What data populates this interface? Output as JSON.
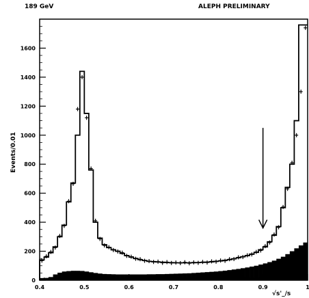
{
  "header": {
    "energy": "189 GeV",
    "experiment": "ALEPH PRELIMINARY"
  },
  "chart_data": {
    "type": "histogram",
    "title": "",
    "xlabel": "√s'_/s",
    "ylabel": "Events/0.01",
    "xlim": [
      0.4,
      1.0
    ],
    "ylim": [
      0,
      1800
    ],
    "x_ticks": [
      "0.4",
      "0.5",
      "0.6",
      "0.7",
      "0.8",
      "0.9",
      "1"
    ],
    "y_ticks": [
      "0",
      "200",
      "400",
      "600",
      "800",
      "1000",
      "1200",
      "1400",
      "1600"
    ],
    "bin_width": 0.01,
    "bin_low_edges": [
      0.4,
      0.41,
      0.42,
      0.43,
      0.44,
      0.45,
      0.46,
      0.47,
      0.48,
      0.49,
      0.5,
      0.51,
      0.52,
      0.53,
      0.54,
      0.55,
      0.56,
      0.57,
      0.58,
      0.59,
      0.6,
      0.61,
      0.62,
      0.63,
      0.64,
      0.65,
      0.66,
      0.67,
      0.68,
      0.69,
      0.7,
      0.71,
      0.72,
      0.73,
      0.74,
      0.75,
      0.76,
      0.77,
      0.78,
      0.79,
      0.8,
      0.81,
      0.82,
      0.83,
      0.84,
      0.85,
      0.86,
      0.87,
      0.88,
      0.89,
      0.9,
      0.91,
      0.92,
      0.93,
      0.94,
      0.95,
      0.96,
      0.97,
      0.98,
      0.99
    ],
    "series": [
      {
        "style": "histogram-line",
        "values": [
          140,
          160,
          190,
          230,
          300,
          380,
          540,
          670,
          1000,
          1440,
          1150,
          760,
          400,
          290,
          245,
          225,
          210,
          200,
          185,
          170,
          160,
          150,
          142,
          136,
          130,
          128,
          126,
          124,
          122,
          121,
          120,
          120,
          120,
          120,
          121,
          122,
          123,
          125,
          127,
          130,
          133,
          137,
          142,
          148,
          155,
          162,
          170,
          180,
          192,
          210,
          230,
          265,
          310,
          370,
          500,
          640,
          800,
          1100,
          1760,
          1760
        ]
      },
      {
        "style": "data-points",
        "values": [
          135,
          165,
          195,
          225,
          305,
          375,
          545,
          665,
          1180,
          1400,
          1120,
          770,
          410,
          285,
          240,
          228,
          208,
          198,
          190,
          168,
          162,
          148,
          145,
          134,
          132,
          126,
          128,
          120,
          125,
          119,
          122,
          118,
          124,
          117,
          123,
          120,
          126,
          122,
          130,
          128,
          136,
          134,
          145,
          146,
          158,
          160,
          172,
          178,
          195,
          205,
          235,
          260,
          315,
          365,
          505,
          630,
          810,
          1000,
          1300,
          1740
        ]
      },
      {
        "style": "filled-background",
        "values": [
          15,
          16,
          22,
          40,
          52,
          60,
          63,
          65,
          65,
          64,
          60,
          55,
          50,
          46,
          43,
          42,
          41,
          40,
          40,
          40,
          40,
          40,
          40,
          40,
          41,
          41,
          42,
          42,
          43,
          44,
          45,
          46,
          47,
          48,
          50,
          52,
          54,
          56,
          58,
          60,
          63,
          66,
          70,
          74,
          78,
          83,
          88,
          94,
          100,
          108,
          116,
          125,
          135,
          148,
          162,
          180,
          200,
          220,
          240,
          260
        ]
      }
    ],
    "annotations": [
      {
        "type": "arrow",
        "x": 0.9,
        "y_from": 1050,
        "y_to": 360,
        "direction": "down"
      }
    ],
    "grid": false,
    "legend": "none"
  }
}
